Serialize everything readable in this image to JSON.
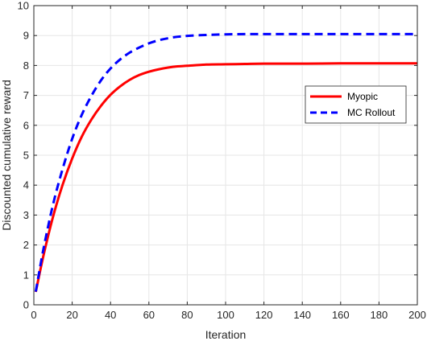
{
  "chart_data": {
    "type": "line",
    "xlabel": "Iteration",
    "ylabel": "Discounted cumulative reward",
    "xlim": [
      0,
      200
    ],
    "ylim": [
      0,
      10
    ],
    "xticks": [
      0,
      20,
      40,
      60,
      80,
      100,
      120,
      140,
      160,
      180,
      200
    ],
    "yticks": [
      0,
      1,
      2,
      3,
      4,
      5,
      6,
      7,
      8,
      9,
      10
    ],
    "grid": true,
    "legend_position": "right",
    "x": [
      1,
      5,
      10,
      15,
      20,
      25,
      30,
      35,
      40,
      45,
      50,
      55,
      60,
      65,
      70,
      75,
      80,
      90,
      100,
      110,
      120,
      140,
      160,
      180,
      200
    ],
    "series": [
      {
        "name": "Myopic",
        "color": "#ff0000",
        "style": "solid",
        "values": [
          0.43,
          1.64,
          2.94,
          4.01,
          4.89,
          5.62,
          6.19,
          6.65,
          7.02,
          7.3,
          7.52,
          7.68,
          7.79,
          7.87,
          7.93,
          7.97,
          7.99,
          8.03,
          8.04,
          8.05,
          8.06,
          8.06,
          8.07,
          8.07,
          8.07
        ]
      },
      {
        "name": "MC Rollout",
        "color": "#0000ff",
        "style": "dashed",
        "values": [
          0.44,
          1.86,
          3.35,
          4.54,
          5.55,
          6.35,
          6.98,
          7.5,
          7.9,
          8.2,
          8.43,
          8.6,
          8.74,
          8.84,
          8.91,
          8.96,
          8.99,
          9.02,
          9.04,
          9.05,
          9.05,
          9.05,
          9.05,
          9.05,
          9.05
        ]
      }
    ]
  }
}
